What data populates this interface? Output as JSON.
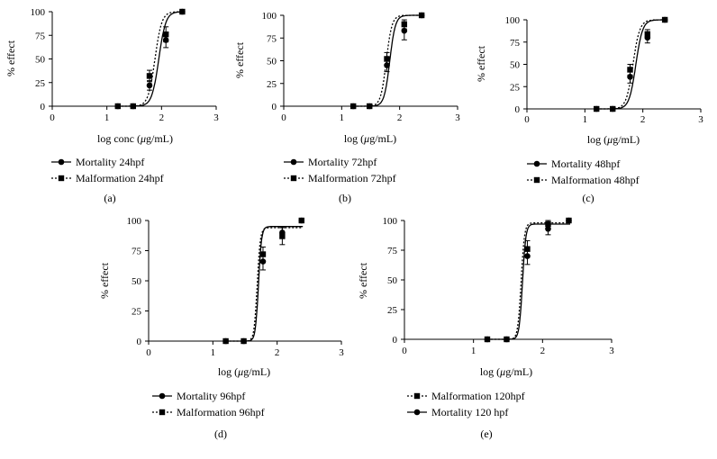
{
  "figure": {
    "marker_color": "#000000",
    "mortality_symbol": "circle",
    "malformation_symbol": "square"
  },
  "chart_data": [
    {
      "type": "line",
      "panel": "(a)",
      "xlabel_pre": "log conc (",
      "xlabel_mu": "μ",
      "xlabel_post": "g/mL)",
      "ylabel": "% effect",
      "xlim": [
        0,
        3
      ],
      "ylim": [
        0,
        100
      ],
      "xticks": [
        "0",
        "1",
        "2",
        "3"
      ],
      "yticks": [
        "0",
        "25",
        "50",
        "75",
        "100"
      ],
      "series": [
        {
          "name": "Mortality 24hpf",
          "marker": "circle",
          "style": "solid",
          "points": [
            {
              "x": 1.2,
              "y": 0
            },
            {
              "x": 1.48,
              "y": 0
            },
            {
              "x": 1.78,
              "y": 22,
              "err": 5
            },
            {
              "x": 2.08,
              "y": 70,
              "err": 8
            },
            {
              "x": 2.38,
              "y": 100
            }
          ],
          "curve": {
            "ec50": 1.95,
            "slope": 6.8
          }
        },
        {
          "name": "Malformation 24hpf",
          "marker": "square",
          "style": "dotted",
          "points": [
            {
              "x": 1.2,
              "y": 0
            },
            {
              "x": 1.48,
              "y": 0
            },
            {
              "x": 1.78,
              "y": 32,
              "err": 6
            },
            {
              "x": 2.08,
              "y": 76,
              "err": 8
            },
            {
              "x": 2.38,
              "y": 100
            }
          ],
          "curve": {
            "ec50": 1.88,
            "slope": 7.0
          }
        }
      ]
    },
    {
      "type": "line",
      "panel": "(b)",
      "xlabel_pre": "log (",
      "xlabel_mu": "μ",
      "xlabel_post": "g/mL)",
      "ylabel": "% effect",
      "xlim": [
        0,
        3
      ],
      "ylim": [
        0,
        100
      ],
      "xticks": [
        "0",
        "1",
        "2",
        "3"
      ],
      "yticks": [
        "0",
        "25",
        "50",
        "75",
        "100"
      ],
      "series": [
        {
          "name": "Mortality 72hpf",
          "marker": "circle",
          "style": "solid",
          "points": [
            {
              "x": 1.2,
              "y": 0
            },
            {
              "x": 1.48,
              "y": 0
            },
            {
              "x": 1.78,
              "y": 45,
              "err": 7
            },
            {
              "x": 2.08,
              "y": 83,
              "err": 10
            },
            {
              "x": 2.38,
              "y": 100
            }
          ],
          "curve": {
            "ec50": 1.83,
            "slope": 9.0
          }
        },
        {
          "name": "Malformation 72hpf",
          "marker": "square",
          "style": "dotted",
          "points": [
            {
              "x": 1.2,
              "y": 0
            },
            {
              "x": 1.48,
              "y": 0
            },
            {
              "x": 1.78,
              "y": 52,
              "err": 7
            },
            {
              "x": 2.08,
              "y": 90,
              "err": 5
            },
            {
              "x": 2.38,
              "y": 100
            }
          ],
          "curve": {
            "ec50": 1.77,
            "slope": 9.0
          }
        }
      ]
    },
    {
      "type": "line",
      "panel": "(c)",
      "xlabel_pre": "log (",
      "xlabel_mu": "μ",
      "xlabel_post": "g/mL)",
      "ylabel": "% effect",
      "xlim": [
        0,
        3
      ],
      "ylim": [
        0,
        100
      ],
      "xticks": [
        "0",
        "1",
        "2",
        "3"
      ],
      "yticks": [
        "0",
        "25",
        "50",
        "75",
        "100"
      ],
      "series": [
        {
          "name": "Mortality 48hpf",
          "marker": "circle",
          "style": "solid",
          "points": [
            {
              "x": 1.2,
              "y": 0
            },
            {
              "x": 1.48,
              "y": 0
            },
            {
              "x": 1.78,
              "y": 36,
              "err": 7
            },
            {
              "x": 2.08,
              "y": 80,
              "err": 6
            },
            {
              "x": 2.38,
              "y": 100
            }
          ],
          "curve": {
            "ec50": 1.88,
            "slope": 7.5
          }
        },
        {
          "name": "Malformation 48hpf",
          "marker": "square",
          "style": "dotted",
          "points": [
            {
              "x": 1.2,
              "y": 0
            },
            {
              "x": 1.48,
              "y": 0
            },
            {
              "x": 1.78,
              "y": 44,
              "err": 6
            },
            {
              "x": 2.08,
              "y": 84,
              "err": 5
            },
            {
              "x": 2.38,
              "y": 100
            }
          ],
          "curve": {
            "ec50": 1.83,
            "slope": 7.5
          }
        }
      ]
    },
    {
      "type": "line",
      "panel": "(d)",
      "xlabel_pre": "log (",
      "xlabel_mu": "μ",
      "xlabel_post": "g/mL)",
      "ylabel": "% effect",
      "xlim": [
        0,
        3
      ],
      "ylim": [
        0,
        100
      ],
      "xticks": [
        "0",
        "1",
        "2",
        "3"
      ],
      "yticks": [
        "0",
        "25",
        "50",
        "75",
        "100"
      ],
      "series": [
        {
          "name": "Mortality 96hpf",
          "marker": "circle",
          "style": "solid",
          "points": [
            {
              "x": 1.2,
              "y": 0
            },
            {
              "x": 1.48,
              "y": 0
            },
            {
              "x": 1.78,
              "y": 66,
              "err": 7
            },
            {
              "x": 2.08,
              "y": 90,
              "err": 5
            },
            {
              "x": 2.38,
              "y": 100
            }
          ],
          "curve": {
            "ec50": 1.71,
            "slope": 18,
            "top": 95
          }
        },
        {
          "name": "Malformation 96hpf",
          "marker": "square",
          "style": "dotted",
          "points": [
            {
              "x": 1.2,
              "y": 0
            },
            {
              "x": 1.48,
              "y": 0
            },
            {
              "x": 1.78,
              "y": 72,
              "err": 6
            },
            {
              "x": 2.08,
              "y": 87,
              "err": 7
            },
            {
              "x": 2.38,
              "y": 100
            }
          ],
          "curve": {
            "ec50": 1.69,
            "slope": 18,
            "top": 94
          }
        }
      ]
    },
    {
      "type": "line",
      "panel": "(e)",
      "xlabel_pre": "log (",
      "xlabel_mu": "μ",
      "xlabel_post": "g/mL)",
      "ylabel": "% effect",
      "xlim": [
        0,
        3
      ],
      "ylim": [
        0,
        100
      ],
      "xticks": [
        "0",
        "1",
        "2",
        "3"
      ],
      "yticks": [
        "0",
        "25",
        "50",
        "75",
        "100"
      ],
      "series": [
        {
          "name": "Malformation 120hpf",
          "marker": "square",
          "style": "dotted",
          "points": [
            {
              "x": 1.2,
              "y": 0
            },
            {
              "x": 1.48,
              "y": 0
            },
            {
              "x": 1.78,
              "y": 76,
              "err": 7
            },
            {
              "x": 2.08,
              "y": 97,
              "err": 4
            },
            {
              "x": 2.38,
              "y": 100
            }
          ],
          "curve": {
            "ec50": 1.69,
            "slope": 18,
            "top": 98
          }
        },
        {
          "name": "Mortality 120 hpf",
          "marker": "circle",
          "style": "solid",
          "points": [
            {
              "x": 1.2,
              "y": 0
            },
            {
              "x": 1.48,
              "y": 0
            },
            {
              "x": 1.78,
              "y": 70,
              "err": 7
            },
            {
              "x": 2.08,
              "y": 93,
              "err": 5
            },
            {
              "x": 2.38,
              "y": 100
            }
          ],
          "curve": {
            "ec50": 1.71,
            "slope": 18,
            "top": 97
          }
        }
      ]
    }
  ]
}
